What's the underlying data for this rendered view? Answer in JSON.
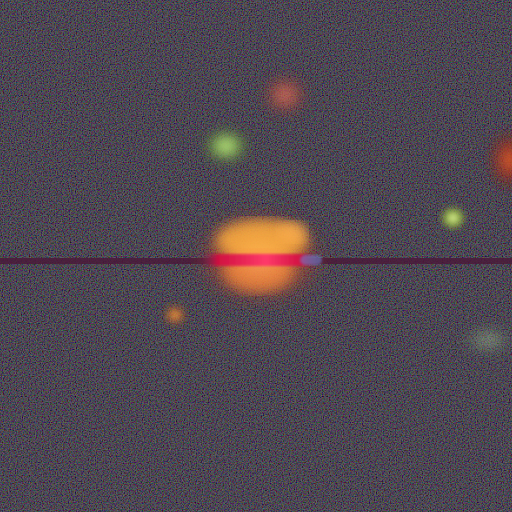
{
  "image": {
    "kind": "astronomical-cutout",
    "background_color": "#0b0a0c",
    "noise_colors": [
      "#3a1020",
      "#10301e",
      "#1a1448",
      "#2a2a2a"
    ],
    "objects": [
      {
        "name": "central-galaxy",
        "colors": [
          "#fff0c8",
          "#ff9a3c",
          "#c23a22"
        ]
      },
      {
        "name": "pink-knot",
        "colors": [
          "#ff8a70",
          "#b04030"
        ]
      },
      {
        "name": "green-galaxy",
        "colors": [
          "#e8ffb0",
          "#8ac050",
          "#304a20"
        ]
      },
      {
        "name": "orange-blob",
        "colors": [
          "#ffa040",
          "#a04010"
        ]
      },
      {
        "name": "small-green-star",
        "colors": [
          "#f0ffb0",
          "#90b040"
        ]
      },
      {
        "name": "red-edge-source",
        "colors": [
          "#ff7030",
          "#a02010"
        ]
      },
      {
        "name": "faint-green-smudge",
        "colors": [
          "#c8e8b0",
          "#507050"
        ]
      },
      {
        "name": "bright-central-streak",
        "colors": [
          "#ff3a6a",
          "#d01040",
          "#5a1a60"
        ]
      },
      {
        "name": "detector-streak",
        "colors": [
          "#4a1a3a",
          "#3a1230"
        ]
      }
    ]
  }
}
